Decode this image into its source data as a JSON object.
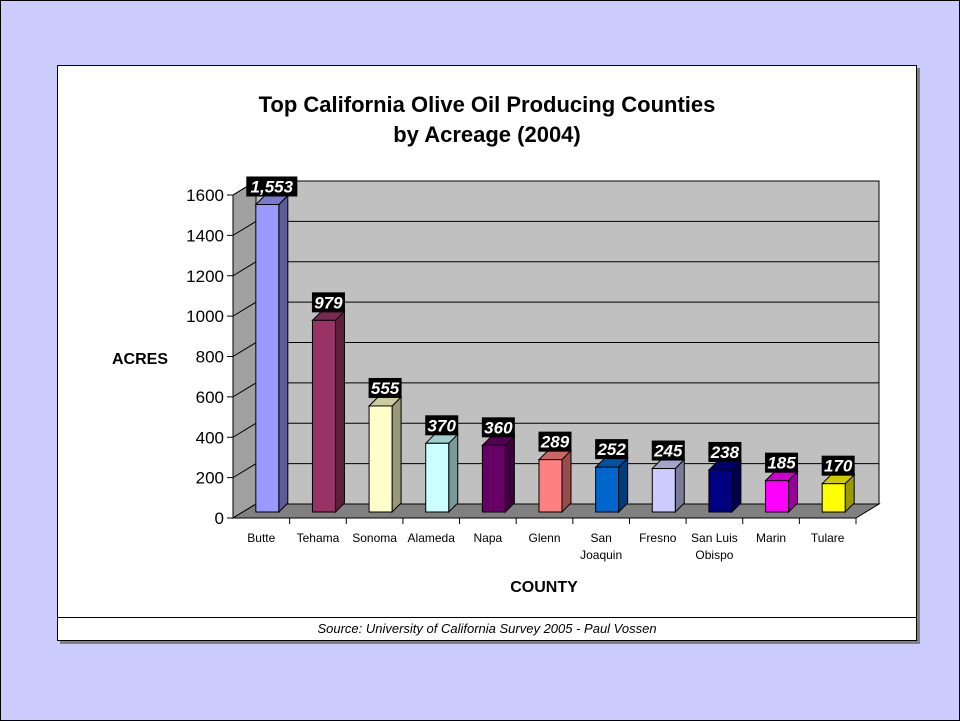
{
  "chart_data": {
    "type": "bar",
    "title_line1": "Top California Olive Oil Producing Counties",
    "title_line2": "by Acreage (2004)",
    "xlabel": "COUNTY",
    "ylabel": "ACRES",
    "ylim": [
      0,
      1600
    ],
    "yticks": [
      "0",
      "200",
      "400",
      "600",
      "800",
      "1000",
      "1200",
      "1400",
      "1600"
    ],
    "categories": [
      [
        "Butte"
      ],
      [
        "Tehama"
      ],
      [
        "Sonoma"
      ],
      [
        "Alameda"
      ],
      [
        "Napa"
      ],
      [
        "Glenn"
      ],
      [
        "San",
        "Joaquin"
      ],
      [
        "Fresno"
      ],
      [
        "San Luis",
        "Obispo"
      ],
      [
        "Marin"
      ],
      [
        "Tulare"
      ]
    ],
    "values": [
      1553,
      979,
      555,
      370,
      360,
      289,
      252,
      245,
      238,
      185,
      170
    ],
    "value_labels": [
      "1,553",
      "979",
      "555",
      "370",
      "360",
      "289",
      "252",
      "245",
      "238",
      "185",
      "170"
    ],
    "colors": [
      "#9999ff",
      "#993366",
      "#ffffcc",
      "#ccffff",
      "#660066",
      "#ff8080",
      "#0066cc",
      "#ccccff",
      "#000080",
      "#ff00ff",
      "#ffff00"
    ],
    "grid": true,
    "plot_background": "#c0c0c0",
    "floor_color": "#808080",
    "source": "Source: University of California Survey 2005 - Paul Vossen"
  }
}
